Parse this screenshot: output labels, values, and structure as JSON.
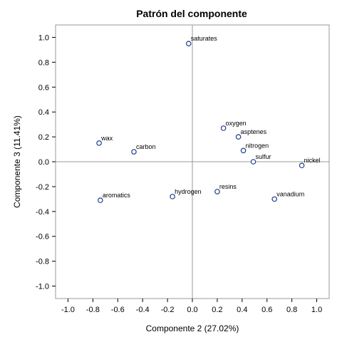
{
  "chart_data": {
    "type": "scatter",
    "title": "Patrón del componente",
    "xlabel": "Componente 2 (27.02%)",
    "ylabel": "Componente 3 (11.41%)",
    "xlim": [
      -1.1,
      1.1
    ],
    "ylim": [
      -1.1,
      1.1
    ],
    "xticks": [
      "-1.0",
      "-0.8",
      "-0.6",
      "-0.4",
      "-0.2",
      "0.0",
      "0.2",
      "0.4",
      "0.6",
      "0.8",
      "1.0"
    ],
    "yticks": [
      "1.0",
      "0.8",
      "0.6",
      "0.4",
      "0.2",
      "0.0",
      "-0.2",
      "-0.4",
      "-0.6",
      "-0.8",
      "-1.0"
    ],
    "reference_lines": {
      "x": 0,
      "y": 0
    },
    "grid": false,
    "point_color": "#1f3f8a",
    "reference_line_color": "#9a9a9a",
    "points": [
      {
        "label": "saturates",
        "x": -0.03,
        "y": 0.95
      },
      {
        "label": "oxygen",
        "x": 0.25,
        "y": 0.27
      },
      {
        "label": "asptenes",
        "x": 0.37,
        "y": 0.2
      },
      {
        "label": "nitrogen",
        "x": 0.41,
        "y": 0.09
      },
      {
        "label": "wax",
        "x": -0.75,
        "y": 0.15
      },
      {
        "label": "carbon",
        "x": -0.47,
        "y": 0.08
      },
      {
        "label": "sulfur",
        "x": 0.49,
        "y": 0.0
      },
      {
        "label": "nickel",
        "x": 0.88,
        "y": -0.03
      },
      {
        "label": "resins",
        "x": 0.2,
        "y": -0.24
      },
      {
        "label": "hydrogen",
        "x": -0.16,
        "y": -0.28
      },
      {
        "label": "aromatics",
        "x": -0.74,
        "y": -0.31
      },
      {
        "label": "vanadium",
        "x": 0.66,
        "y": -0.3
      }
    ]
  }
}
